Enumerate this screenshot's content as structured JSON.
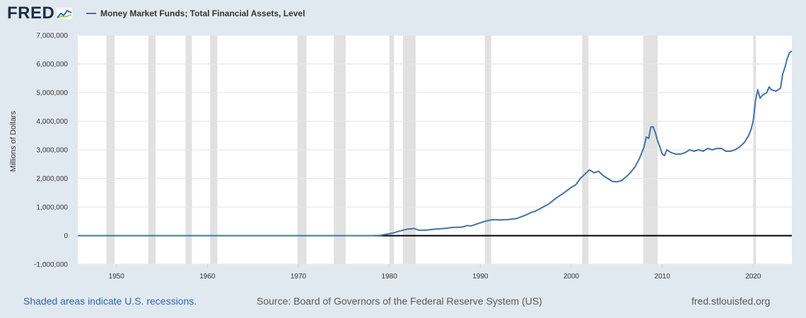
{
  "logo": {
    "text": "FRED"
  },
  "footer": {
    "recessions_note": "Shaded areas indicate U.S. recessions.",
    "source": "Source: Board of Governors of the Federal Reserve System (US)",
    "url": "fred.stlouisfed.org"
  },
  "colors": {
    "series": "#4572a7",
    "recession": "#e1e1e1",
    "background": "#e1e9f0",
    "plot": "#ffffff",
    "zero_line": "#000000"
  },
  "chart_data": {
    "type": "line",
    "title": "",
    "legend_label": "Money Market Funds; Total Financial Assets, Level",
    "legend_position": "top-left",
    "ylabel": "Millions of Dollars",
    "xlabel": "",
    "xlim": [
      1945.75,
      2024.25
    ],
    "ylim": [
      -1000000,
      7000000
    ],
    "grid": true,
    "x_ticks": [
      {
        "value": 1950,
        "label": "1950"
      },
      {
        "value": 1960,
        "label": "1960"
      },
      {
        "value": 1970,
        "label": "1970"
      },
      {
        "value": 1980,
        "label": "1980"
      },
      {
        "value": 1990,
        "label": "1990"
      },
      {
        "value": 2000,
        "label": "2000"
      },
      {
        "value": 2010,
        "label": "2010"
      },
      {
        "value": 2020,
        "label": "2020"
      }
    ],
    "y_ticks": [
      {
        "value": -1000000,
        "label": "-1,000,000"
      },
      {
        "value": 0,
        "label": "0"
      },
      {
        "value": 1000000,
        "label": "1,000,000"
      },
      {
        "value": 2000000,
        "label": "2,000,000"
      },
      {
        "value": 3000000,
        "label": "3,000,000"
      },
      {
        "value": 4000000,
        "label": "4,000,000"
      },
      {
        "value": 5000000,
        "label": "5,000,000"
      },
      {
        "value": 6000000,
        "label": "6,000,000"
      },
      {
        "value": 7000000,
        "label": "7,000,000"
      }
    ],
    "recessions": [
      [
        1948.9,
        1949.8
      ],
      [
        1953.5,
        1954.3
      ],
      [
        1957.6,
        1958.3
      ],
      [
        1960.3,
        1961.1
      ],
      [
        1969.9,
        1970.9
      ],
      [
        1973.9,
        1975.2
      ],
      [
        1980.0,
        1980.5
      ],
      [
        1981.5,
        1982.9
      ],
      [
        1990.5,
        1991.2
      ],
      [
        2001.2,
        2001.9
      ],
      [
        2007.9,
        2009.5
      ],
      [
        2020.0,
        2020.3
      ]
    ],
    "series": [
      {
        "name": "Money Market Funds; Total Financial Assets, Level",
        "x": [
          1945.75,
          1974.0,
          1975.0,
          1976.0,
          1977.0,
          1978.0,
          1979.0,
          1980.0,
          1980.5,
          1981.0,
          1982.0,
          1982.75,
          1983.25,
          1984.0,
          1985.0,
          1986.0,
          1987.0,
          1988.0,
          1988.5,
          1989.0,
          1990.0,
          1990.5,
          1991.0,
          1991.5,
          1992.0,
          1993.0,
          1994.0,
          1995.0,
          1995.5,
          1996.0,
          1996.5,
          1997.0,
          1997.5,
          1998.0,
          1998.5,
          1999.0,
          1999.5,
          2000.0,
          2000.5,
          2001.0,
          2001.5,
          2002.0,
          2002.5,
          2003.0,
          2003.5,
          2004.0,
          2004.5,
          2005.0,
          2005.5,
          2006.0,
          2006.5,
          2007.0,
          2007.5,
          2008.0,
          2008.25,
          2008.5,
          2008.75,
          2009.0,
          2009.25,
          2009.5,
          2009.75,
          2010.0,
          2010.25,
          2010.5,
          2010.75,
          2011.0,
          2011.5,
          2012.0,
          2012.5,
          2013.0,
          2013.5,
          2014.0,
          2014.5,
          2015.0,
          2015.5,
          2016.0,
          2016.5,
          2017.0,
          2017.5,
          2018.0,
          2018.5,
          2019.0,
          2019.5,
          2019.75,
          2020.0,
          2020.25,
          2020.5,
          2020.75,
          2021.0,
          2021.5,
          2021.75,
          2022.0,
          2022.5,
          2023.0,
          2023.25,
          2023.5,
          2023.75,
          2024.0,
          2024.25
        ],
        "values": [
          0,
          0,
          0,
          0,
          0,
          0,
          10000,
          70000,
          100000,
          150000,
          230000,
          250000,
          190000,
          190000,
          230000,
          250000,
          290000,
          300000,
          350000,
          340000,
          450000,
          500000,
          540000,
          560000,
          550000,
          560000,
          600000,
          720000,
          800000,
          850000,
          930000,
          1020000,
          1100000,
          1230000,
          1350000,
          1450000,
          1570000,
          1690000,
          1780000,
          2000000,
          2150000,
          2300000,
          2200000,
          2250000,
          2100000,
          2000000,
          1900000,
          1880000,
          1920000,
          2050000,
          2200000,
          2400000,
          2700000,
          3100000,
          3450000,
          3400000,
          3800000,
          3800000,
          3600000,
          3300000,
          3100000,
          2850000,
          2800000,
          3000000,
          2950000,
          2900000,
          2850000,
          2850000,
          2900000,
          3000000,
          2950000,
          3000000,
          2950000,
          3050000,
          3000000,
          3050000,
          3050000,
          2950000,
          2950000,
          3000000,
          3100000,
          3250000,
          3500000,
          3700000,
          4000000,
          4700000,
          5100000,
          4800000,
          4900000,
          5000000,
          5200000,
          5100000,
          5050000,
          5150000,
          5650000,
          5900000,
          6200000,
          6400000,
          6450000
        ]
      }
    ]
  }
}
